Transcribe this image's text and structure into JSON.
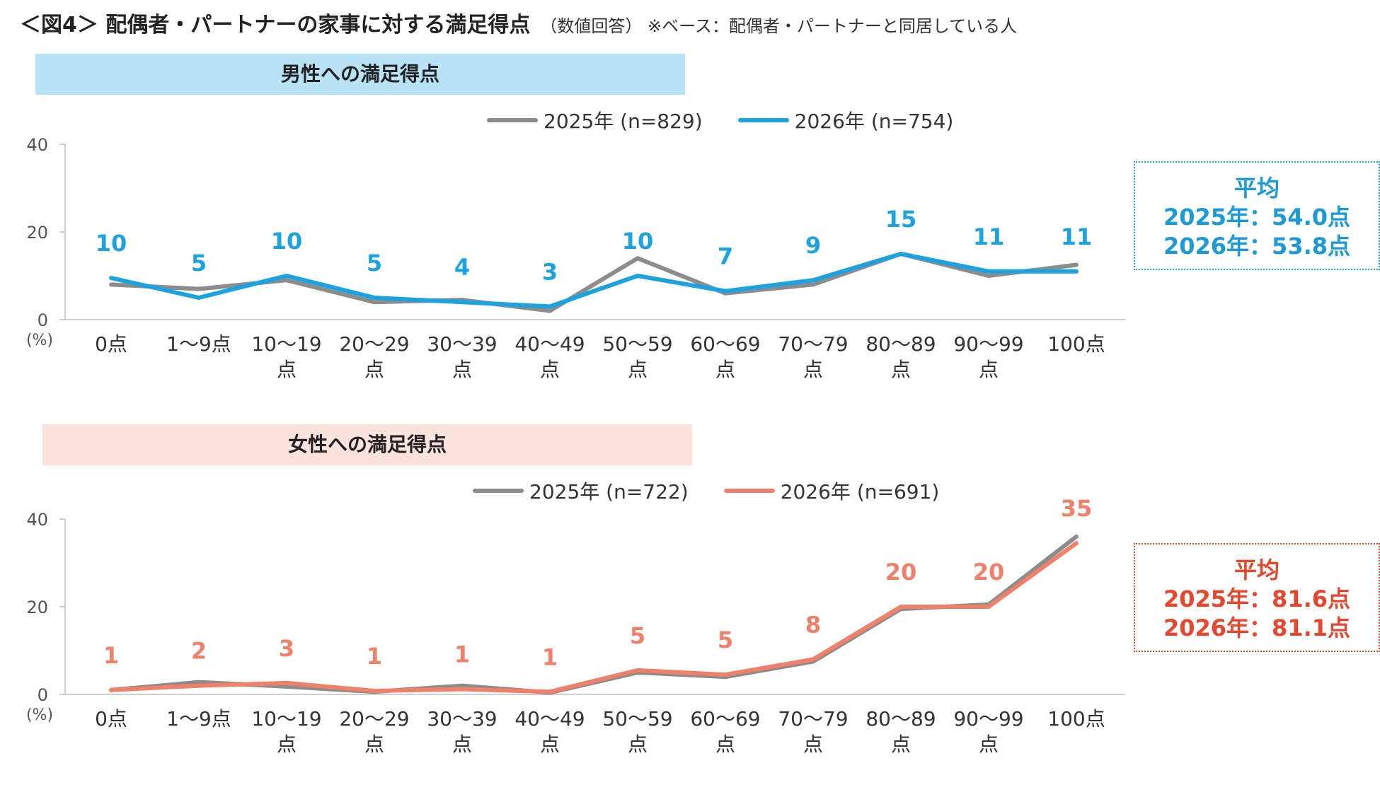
{
  "figure": {
    "title": "＜図4＞ 配偶者・パートナーの家事に対する満足得点",
    "subtitle": "（数値回答） ※ベース：配偶者・パートナーと同居している人"
  },
  "colors": {
    "series_2025": "#8c8c8c",
    "men_2026": "#1aa3e0",
    "women_2026": "#f08069",
    "men_header_bg": "#b8e2f6",
    "women_header_bg": "#fbe2dc",
    "men_avg_text": "#1a9ad6",
    "women_avg_text": "#e8452c"
  },
  "panels": {
    "men": {
      "header": "男性への満足得点",
      "legend": [
        "2025年 (n=829)",
        "2026年 (n=754)"
      ],
      "average": {
        "title": "平均",
        "line1": "2025年：54.0点",
        "line2": "2026年：53.8点"
      }
    },
    "women": {
      "header": "女性への満足得点",
      "legend": [
        "2025年 (n=722)",
        "2026年 (n=691)"
      ],
      "average": {
        "title": "平均",
        "line1": "2025年：81.6点",
        "line2": "2026年：81.1点"
      }
    }
  },
  "chart_data": [
    {
      "type": "line",
      "title": "男性への満足得点",
      "categories": [
        "0点",
        "1〜9点",
        "10〜19点",
        "20〜29点",
        "30〜39点",
        "40〜49点",
        "50〜59点",
        "60〜69点",
        "70〜79点",
        "80〜89点",
        "90〜99点",
        "100点"
      ],
      "ylim": [
        0,
        40
      ],
      "yticks": [
        0,
        20,
        40
      ],
      "yunit": "(%)",
      "grid": false,
      "legend": "top-center",
      "series": [
        {
          "name": "2025年 (n=829)",
          "values": [
            8,
            7,
            9,
            4,
            4.5,
            2,
            14,
            6,
            8,
            15,
            10,
            12.5
          ],
          "labels": null
        },
        {
          "name": "2026年 (n=754)",
          "values": [
            9.5,
            5,
            10,
            5,
            4,
            3,
            10,
            6.5,
            9,
            15,
            11,
            11
          ],
          "labels": [
            "10",
            "5",
            "10",
            "5",
            "4",
            "3",
            "10",
            "7",
            "9",
            "15",
            "11",
            "11"
          ]
        }
      ]
    },
    {
      "type": "line",
      "title": "女性への満足得点",
      "categories": [
        "0点",
        "1〜9点",
        "10〜19点",
        "20〜29点",
        "30〜39点",
        "40〜49点",
        "50〜59点",
        "60〜69点",
        "70〜79点",
        "80〜89点",
        "90〜99点",
        "100点"
      ],
      "ylim": [
        0,
        40
      ],
      "yticks": [
        0,
        20,
        40
      ],
      "yunit": "(%)",
      "grid": false,
      "legend": "top-center",
      "series": [
        {
          "name": "2025年 (n=722)",
          "values": [
            1,
            2.8,
            1.8,
            0.6,
            2,
            0.4,
            5,
            4,
            7.5,
            19.5,
            20.5,
            36
          ],
          "labels": null
        },
        {
          "name": "2026年 (n=691)",
          "values": [
            1,
            2,
            2.6,
            0.8,
            1.2,
            0.6,
            5.5,
            4.5,
            8,
            20,
            20,
            34.5
          ],
          "labels": [
            "1",
            "2",
            "3",
            "1",
            "1",
            "1",
            "5",
            "5",
            "8",
            "20",
            "20",
            "35"
          ]
        }
      ]
    }
  ]
}
